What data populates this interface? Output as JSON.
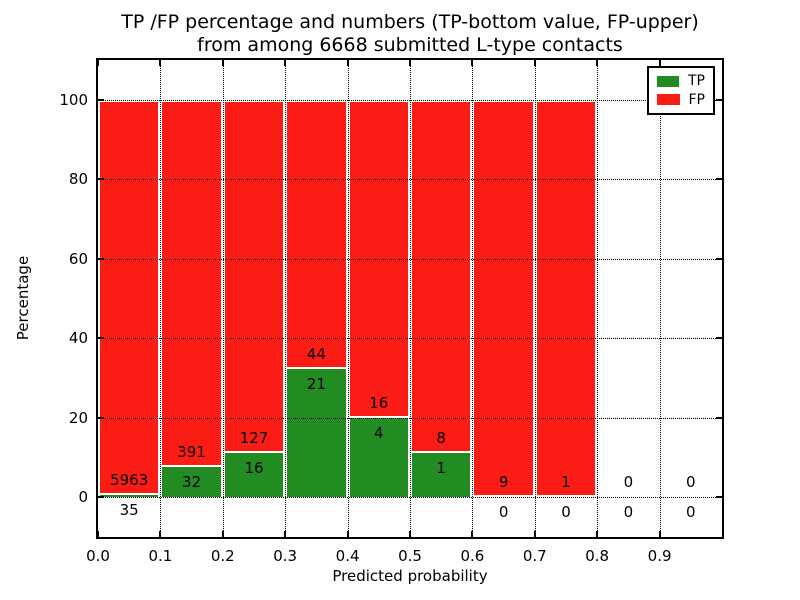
{
  "figure": {
    "title_line1": "TP /FP percentage and numbers (TP-bottom value, FP-upper)",
    "title_line2": "from among 6668 submitted L-type contacts"
  },
  "legend": {
    "items": [
      {
        "label": "TP",
        "color": "#228b22"
      },
      {
        "label": "FP",
        "color": "#fb1d15"
      }
    ]
  },
  "chart_data": {
    "type": "bar",
    "stacked": true,
    "normalized": "each non-empty bin stacks to 100%",
    "title": "TP /FP percentage and numbers (TP-bottom value, FP-upper) from among 6668 submitted L-type contacts",
    "xlabel": "Predicted probability",
    "ylabel": "Percentage",
    "xlim": [
      0.0,
      1.0
    ],
    "ylim": [
      -10,
      110
    ],
    "xticks": [
      0.0,
      0.1,
      0.2,
      0.3,
      0.4,
      0.5,
      0.6,
      0.7,
      0.8,
      0.9
    ],
    "xtick_labels": [
      "0.0",
      "0.1",
      "0.2",
      "0.3",
      "0.4",
      "0.5",
      "0.6",
      "0.7",
      "0.8",
      "0.9"
    ],
    "yticks": [
      0,
      20,
      40,
      60,
      80,
      100
    ],
    "ytick_labels": [
      "0",
      "20",
      "40",
      "60",
      "80",
      "100"
    ],
    "grid": true,
    "grid_style": "dotted",
    "legend_position": "upper right",
    "total_contacts": 6668,
    "bin_width": 0.1,
    "categories": [
      "0.0-0.1",
      "0.1-0.2",
      "0.2-0.3",
      "0.3-0.4",
      "0.4-0.5",
      "0.5-0.6",
      "0.6-0.7",
      "0.7-0.8",
      "0.8-0.9",
      "0.9-1.0"
    ],
    "series": [
      {
        "name": "TP",
        "color": "#228b22",
        "values": [
          35,
          32,
          16,
          21,
          4,
          1,
          0,
          0,
          0,
          0
        ]
      },
      {
        "name": "FP",
        "color": "#fb1d15",
        "values": [
          5963,
          391,
          127,
          44,
          16,
          8,
          9,
          1,
          0,
          0
        ]
      }
    ],
    "tp_percent_of_bin": [
      0.58,
      7.57,
      11.19,
      32.31,
      20.0,
      11.11,
      0.0,
      0.0,
      null,
      null
    ]
  }
}
